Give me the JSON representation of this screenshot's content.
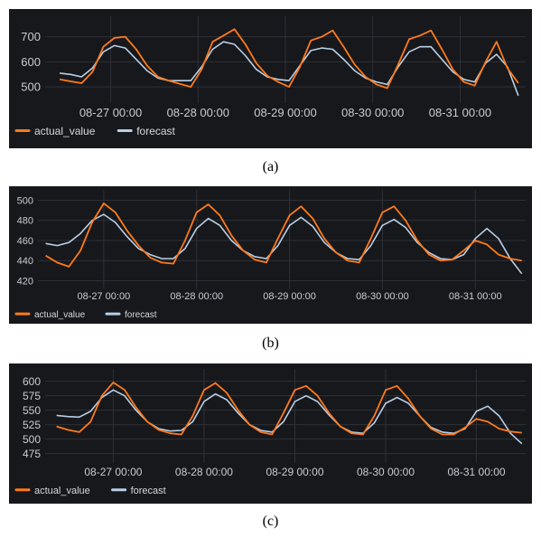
{
  "colors": {
    "actual": "#ff7a1a",
    "forecast": "#b9cfe6",
    "background": "#17181c",
    "grid": "#2e3036"
  },
  "legend": {
    "actual": "actual_value",
    "forecast": "forecast"
  },
  "captions": [
    "(a)",
    "(b)",
    "(c)"
  ],
  "chart_data": [
    {
      "type": "line",
      "title": "",
      "x_ticks": [
        "08-27 00:00",
        "08-28 00:00",
        "08-29 00:00",
        "08-30 00:00",
        "08-31 00:00"
      ],
      "y_ticks": [
        500,
        600,
        700
      ],
      "ylim": [
        450,
        760
      ],
      "grid": true,
      "legend_position": "bottom-left",
      "x": [
        "08-26 10:00",
        "08-26 13:00",
        "08-26 16:00",
        "08-26 19:00",
        "08-26 22:00",
        "08-27 01:00",
        "08-27 04:00",
        "08-27 07:00",
        "08-27 10:00",
        "08-27 13:00",
        "08-27 16:00",
        "08-27 19:00",
        "08-27 22:00",
        "08-28 01:00",
        "08-28 04:00",
        "08-28 07:00",
        "08-28 10:00",
        "08-28 13:00",
        "08-28 16:00",
        "08-28 19:00",
        "08-28 22:00",
        "08-29 01:00",
        "08-29 04:00",
        "08-29 07:00",
        "08-29 10:00",
        "08-29 13:00",
        "08-29 16:00",
        "08-29 19:00",
        "08-29 22:00",
        "08-30 01:00",
        "08-30 04:00",
        "08-30 07:00",
        "08-30 10:00",
        "08-30 13:00",
        "08-30 16:00",
        "08-30 19:00",
        "08-30 22:00",
        "08-31 01:00",
        "08-31 04:00",
        "08-31 07:00",
        "08-31 10:00",
        "08-31 13:00",
        "08-31 16:00"
      ],
      "series": [
        {
          "name": "actual_value",
          "values": [
            530,
            522,
            515,
            560,
            660,
            695,
            700,
            650,
            585,
            540,
            525,
            512,
            500,
            570,
            680,
            705,
            730,
            670,
            595,
            545,
            520,
            500,
            580,
            685,
            700,
            725,
            660,
            590,
            540,
            510,
            495,
            590,
            690,
            705,
            725,
            650,
            570,
            520,
            505,
            600,
            680,
            575,
            515
          ]
        },
        {
          "name": "forecast",
          "values": [
            555,
            550,
            540,
            575,
            640,
            665,
            655,
            610,
            565,
            535,
            525,
            525,
            525,
            580,
            650,
            680,
            670,
            625,
            570,
            540,
            530,
            525,
            585,
            645,
            655,
            650,
            610,
            565,
            535,
            520,
            510,
            580,
            640,
            660,
            660,
            610,
            560,
            530,
            520,
            595,
            630,
            580,
            465
          ]
        }
      ]
    },
    {
      "type": "line",
      "title": "",
      "x_ticks": [
        "08-27 00:00",
        "08-28 00:00",
        "08-29 00:00",
        "08-30 00:00",
        "08-31 00:00"
      ],
      "y_ticks": [
        420,
        440,
        460,
        480,
        500
      ],
      "ylim": [
        415,
        505
      ],
      "grid": true,
      "legend_position": "bottom-left",
      "x": [
        "08-26 09:00",
        "08-26 12:00",
        "08-26 15:00",
        "08-26 18:00",
        "08-26 21:00",
        "08-27 00:00",
        "08-27 03:00",
        "08-27 06:00",
        "08-27 09:00",
        "08-27 12:00",
        "08-27 15:00",
        "08-27 18:00",
        "08-27 21:00",
        "08-28 00:00",
        "08-28 03:00",
        "08-28 06:00",
        "08-28 09:00",
        "08-28 12:00",
        "08-28 15:00",
        "08-28 18:00",
        "08-28 21:00",
        "08-29 00:00",
        "08-29 03:00",
        "08-29 06:00",
        "08-29 09:00",
        "08-29 12:00",
        "08-29 15:00",
        "08-29 18:00",
        "08-29 21:00",
        "08-30 00:00",
        "08-30 03:00",
        "08-30 06:00",
        "08-30 09:00",
        "08-30 12:00",
        "08-30 15:00",
        "08-30 18:00",
        "08-30 21:00",
        "08-31 00:00",
        "08-31 03:00",
        "08-31 06:00",
        "08-31 09:00",
        "08-31 12:00"
      ],
      "series": [
        {
          "name": "actual_value",
          "values": [
            445,
            438,
            434,
            450,
            478,
            497,
            488,
            470,
            455,
            443,
            438,
            437,
            460,
            488,
            496,
            485,
            465,
            450,
            441,
            438,
            462,
            485,
            494,
            482,
            462,
            448,
            440,
            438,
            462,
            488,
            494,
            480,
            460,
            446,
            440,
            441,
            450,
            460,
            456,
            446,
            442,
            440
          ]
        },
        {
          "name": "forecast",
          "values": [
            457,
            455,
            458,
            467,
            480,
            486,
            478,
            464,
            452,
            446,
            442,
            442,
            452,
            472,
            482,
            475,
            460,
            450,
            444,
            442,
            455,
            475,
            483,
            474,
            458,
            448,
            442,
            441,
            455,
            475,
            481,
            473,
            458,
            448,
            442,
            441,
            446,
            462,
            472,
            462,
            442,
            427
          ]
        }
      ]
    },
    {
      "type": "line",
      "title": "",
      "x_ticks": [
        "08-27 00:00",
        "08-28 00:00",
        "08-29 00:00",
        "08-30 00:00",
        "08-31 00:00"
      ],
      "y_ticks": [
        475,
        500,
        525,
        550,
        575,
        600
      ],
      "ylim": [
        465,
        612
      ],
      "grid": true,
      "legend_position": "bottom-left",
      "x": [
        "08-26 09:00",
        "08-26 12:00",
        "08-26 15:00",
        "08-26 18:00",
        "08-26 21:00",
        "08-27 00:00",
        "08-27 03:00",
        "08-27 06:00",
        "08-27 09:00",
        "08-27 12:00",
        "08-27 15:00",
        "08-27 18:00",
        "08-27 21:00",
        "08-28 00:00",
        "08-28 03:00",
        "08-28 06:00",
        "08-28 09:00",
        "08-28 12:00",
        "08-28 15:00",
        "08-28 18:00",
        "08-28 21:00",
        "08-29 00:00",
        "08-29 03:00",
        "08-29 06:00",
        "08-29 09:00",
        "08-29 12:00",
        "08-29 15:00",
        "08-29 18:00",
        "08-29 21:00",
        "08-30 00:00",
        "08-30 03:00",
        "08-30 06:00",
        "08-30 09:00",
        "08-30 12:00",
        "08-30 15:00",
        "08-30 18:00",
        "08-30 21:00",
        "08-31 00:00",
        "08-31 03:00",
        "08-31 06:00",
        "08-31 09:00",
        "08-31 12:00"
      ],
      "series": [
        {
          "name": "actual_value",
          "values": [
            522,
            516,
            512,
            530,
            575,
            598,
            585,
            555,
            530,
            516,
            510,
            508,
            540,
            585,
            597,
            580,
            550,
            525,
            512,
            508,
            545,
            585,
            592,
            575,
            545,
            522,
            510,
            508,
            540,
            585,
            592,
            570,
            540,
            518,
            508,
            508,
            520,
            535,
            530,
            518,
            513,
            511
          ]
        },
        {
          "name": "forecast",
          "values": [
            541,
            539,
            538,
            548,
            572,
            585,
            575,
            550,
            530,
            518,
            514,
            515,
            530,
            565,
            578,
            568,
            545,
            525,
            515,
            512,
            530,
            565,
            575,
            565,
            542,
            522,
            512,
            510,
            528,
            562,
            572,
            562,
            540,
            520,
            512,
            510,
            518,
            548,
            557,
            540,
            510,
            492
          ]
        }
      ]
    }
  ]
}
